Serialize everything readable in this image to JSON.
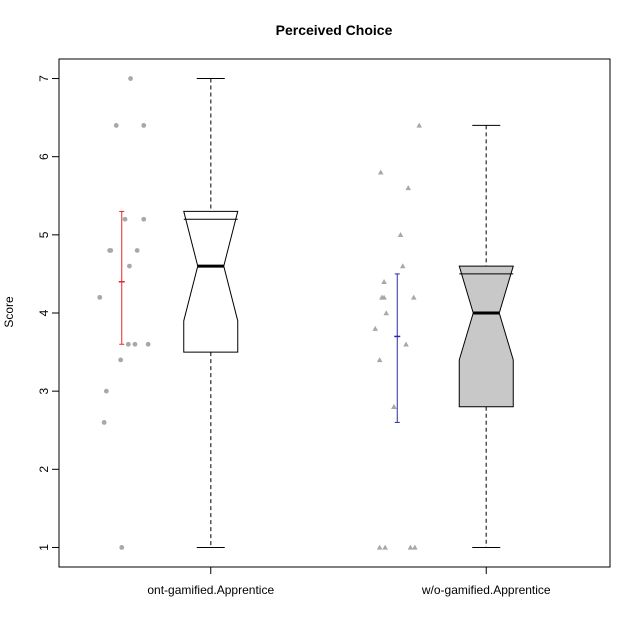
{
  "chart_data": {
    "type": "box",
    "title": "Perceived Choice",
    "ylabel": "Score",
    "xlabel": "",
    "ylim": [
      0.75,
      7.25
    ],
    "y_ticks": [
      1,
      2,
      3,
      4,
      5,
      6,
      7
    ],
    "categories": [
      "ont-gamified.Apprentice",
      "w/o-gamified.Apprentice"
    ],
    "boxes": [
      {
        "category": "ont-gamified.Apprentice",
        "fill": "#ffffff",
        "whisker_low": 1.0,
        "q1": 3.5,
        "median": 4.6,
        "q3": 5.2,
        "whisker_high": 7.0,
        "notch_low": 3.9,
        "notch_high": 5.3
      },
      {
        "category": "w/o-gamified.Apprentice",
        "fill": "#c8c8c8",
        "whisker_low": 1.0,
        "q1": 2.8,
        "median": 4.0,
        "q3": 4.5,
        "whisker_high": 6.4,
        "notch_low": 3.4,
        "notch_high": 4.6
      }
    ],
    "mean_ci": [
      {
        "category": "ont-gamified.Apprentice",
        "mean": 4.4,
        "low": 3.6,
        "high": 5.3,
        "color": "#e8262a"
      },
      {
        "category": "w/o-gamified.Apprentice",
        "mean": 3.7,
        "low": 2.6,
        "high": 4.5,
        "color": "#2a2aa8"
      }
    ],
    "points": [
      {
        "category": "ont-gamified.Apprentice",
        "marker": "circle",
        "color": "#a8a8a8",
        "jitter": [
          0.08,
          -0.05,
          0.2,
          0.03,
          -0.11,
          0.14,
          0.07,
          0.2,
          -0.1,
          0.06,
          0.12,
          -0.2,
          -0.01,
          0.24,
          -0.14,
          -0.16,
          0.0
        ],
        "values": [
          7.0,
          6.4,
          6.4,
          5.2,
          4.8,
          4.8,
          4.6,
          5.2,
          4.8,
          3.6,
          3.6,
          4.2,
          3.4,
          3.6,
          3.0,
          2.6,
          1.0
        ]
      },
      {
        "category": "w/o-gamified.Apprentice",
        "marker": "triangle",
        "color": "#a8a8a8",
        "jitter": [
          0.2,
          -0.15,
          0.1,
          0.03,
          0.05,
          -0.12,
          -0.14,
          -0.12,
          -0.1,
          -0.2,
          0.15,
          -0.16,
          0.08,
          -0.03,
          -0.03,
          -0.16,
          -0.11,
          0.12,
          0.16
        ],
        "values": [
          6.4,
          5.8,
          5.6,
          5.0,
          4.6,
          4.4,
          4.2,
          4.2,
          4.0,
          3.8,
          4.2,
          3.4,
          3.6,
          2.8,
          2.8,
          1.0,
          1.0,
          1.0,
          1.0
        ]
      }
    ]
  }
}
